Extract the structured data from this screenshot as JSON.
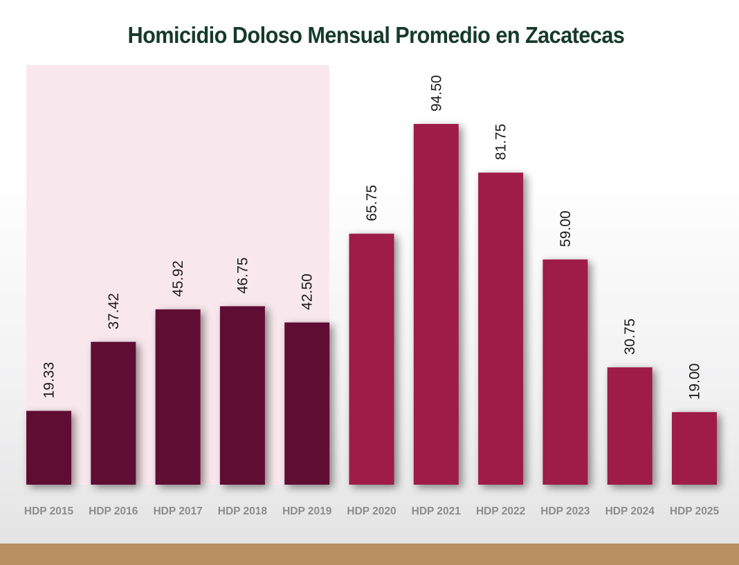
{
  "colors": {
    "period_a_bar": "#5f0c31",
    "period_b_bar": "#9e1e47",
    "highlight_region": "#f8e8ee",
    "title_text": "#163a2b",
    "category_text": "#8c8c8c",
    "bottom_band": "#b99061"
  },
  "chart_data": {
    "type": "bar",
    "title": "Homicidio Doloso Mensual Promedio en Zacatecas",
    "xlabel": "",
    "ylabel": "",
    "categories": [
      "HDP 2015",
      "HDP 2016",
      "HDP 2017",
      "HDP 2018",
      "HDP 2019",
      "HDP 2020",
      "HDP 2021",
      "HDP 2022",
      "HDP 2023",
      "HDP 2024",
      "HDP 2025"
    ],
    "values": [
      19.33,
      37.42,
      45.92,
      46.75,
      42.5,
      65.75,
      94.5,
      81.75,
      59.0,
      30.75,
      19.0
    ],
    "value_labels": [
      "19.33",
      "37.42",
      "45.92",
      "46.75",
      "42.50",
      "65.75",
      "94.50",
      "81.75",
      "59.00",
      "30.75",
      "19.00"
    ],
    "bar_groups": [
      0,
      0,
      0,
      0,
      0,
      1,
      1,
      1,
      1,
      1,
      1
    ],
    "highlighted_categories": [
      "HDP 2015",
      "HDP 2016",
      "HDP 2017",
      "HDP 2018",
      "HDP 2019"
    ],
    "ylim": [
      0,
      110
    ],
    "grid": false,
    "legend": "none"
  }
}
